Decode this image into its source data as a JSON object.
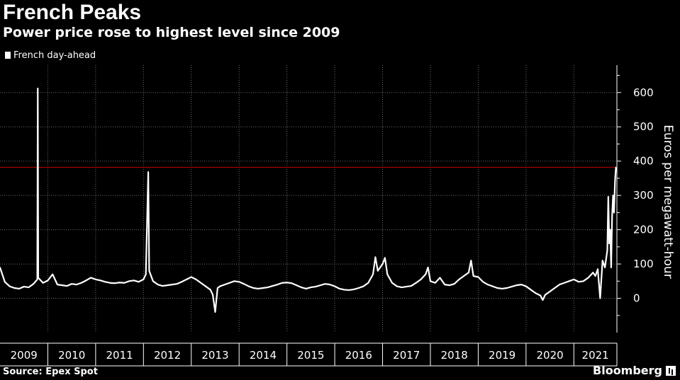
{
  "title": "French Peaks",
  "subtitle": "Power price rose to highest level since 2009",
  "source": "Source: Epex Spot",
  "brand": "Bloomberg",
  "colors": {
    "background": "#000000",
    "series": "#ffffff",
    "reference_line": "#c00000",
    "grid": "#6a6a6a"
  },
  "chart_data": {
    "type": "line",
    "title": "French Peaks",
    "subtitle": "Power price rose to highest level since 2009",
    "ylabel": "Euros per megawatt-hour",
    "y_axis_side": "right",
    "xlim": [
      2009.0,
      2021.9
    ],
    "ylim": [
      -100,
      680
    ],
    "yticks": [
      0,
      100,
      200,
      300,
      400,
      500,
      600
    ],
    "grid": true,
    "legend": "top-left",
    "categories": [
      "2009",
      "2010",
      "2011",
      "2012",
      "2013",
      "2014",
      "2015",
      "2016",
      "2017",
      "2018",
      "2019",
      "2020",
      "2021"
    ],
    "reference_line": 382,
    "series": [
      {
        "name": "French day-ahead",
        "color": "#ffffff",
        "points": [
          [
            2009.0,
            90
          ],
          [
            2009.1,
            48
          ],
          [
            2009.2,
            35
          ],
          [
            2009.3,
            30
          ],
          [
            2009.4,
            28
          ],
          [
            2009.5,
            34
          ],
          [
            2009.6,
            32
          ],
          [
            2009.7,
            42
          ],
          [
            2009.78,
            55
          ],
          [
            2009.79,
            612
          ],
          [
            2009.8,
            60
          ],
          [
            2009.9,
            45
          ],
          [
            2010.0,
            52
          ],
          [
            2010.1,
            70
          ],
          [
            2010.2,
            40
          ],
          [
            2010.3,
            38
          ],
          [
            2010.4,
            36
          ],
          [
            2010.5,
            42
          ],
          [
            2010.6,
            40
          ],
          [
            2010.7,
            45
          ],
          [
            2010.8,
            52
          ],
          [
            2010.9,
            60
          ],
          [
            2011.0,
            55
          ],
          [
            2011.1,
            52
          ],
          [
            2011.2,
            48
          ],
          [
            2011.3,
            45
          ],
          [
            2011.4,
            44
          ],
          [
            2011.5,
            46
          ],
          [
            2011.6,
            45
          ],
          [
            2011.7,
            50
          ],
          [
            2011.8,
            52
          ],
          [
            2011.9,
            48
          ],
          [
            2012.0,
            55
          ],
          [
            2012.05,
            70
          ],
          [
            2012.1,
            368
          ],
          [
            2012.12,
            80
          ],
          [
            2012.2,
            50
          ],
          [
            2012.3,
            40
          ],
          [
            2012.4,
            36
          ],
          [
            2012.5,
            38
          ],
          [
            2012.6,
            40
          ],
          [
            2012.7,
            42
          ],
          [
            2012.8,
            48
          ],
          [
            2012.9,
            55
          ],
          [
            2013.0,
            62
          ],
          [
            2013.1,
            55
          ],
          [
            2013.2,
            45
          ],
          [
            2013.3,
            35
          ],
          [
            2013.4,
            25
          ],
          [
            2013.45,
            10
          ],
          [
            2013.5,
            -40
          ],
          [
            2013.55,
            30
          ],
          [
            2013.6,
            35
          ],
          [
            2013.7,
            40
          ],
          [
            2013.8,
            45
          ],
          [
            2013.9,
            50
          ],
          [
            2014.0,
            48
          ],
          [
            2014.1,
            42
          ],
          [
            2014.2,
            35
          ],
          [
            2014.3,
            30
          ],
          [
            2014.4,
            28
          ],
          [
            2014.5,
            30
          ],
          [
            2014.6,
            32
          ],
          [
            2014.7,
            36
          ],
          [
            2014.8,
            40
          ],
          [
            2014.9,
            45
          ],
          [
            2015.0,
            46
          ],
          [
            2015.1,
            44
          ],
          [
            2015.2,
            38
          ],
          [
            2015.3,
            32
          ],
          [
            2015.4,
            28
          ],
          [
            2015.5,
            32
          ],
          [
            2015.6,
            34
          ],
          [
            2015.7,
            38
          ],
          [
            2015.8,
            42
          ],
          [
            2015.9,
            40
          ],
          [
            2016.0,
            35
          ],
          [
            2016.1,
            28
          ],
          [
            2016.2,
            25
          ],
          [
            2016.3,
            24
          ],
          [
            2016.4,
            26
          ],
          [
            2016.5,
            30
          ],
          [
            2016.6,
            35
          ],
          [
            2016.7,
            45
          ],
          [
            2016.8,
            70
          ],
          [
            2016.85,
            120
          ],
          [
            2016.9,
            80
          ],
          [
            2016.95,
            90
          ],
          [
            2017.0,
            100
          ],
          [
            2017.05,
            118
          ],
          [
            2017.1,
            70
          ],
          [
            2017.2,
            45
          ],
          [
            2017.3,
            35
          ],
          [
            2017.4,
            32
          ],
          [
            2017.5,
            34
          ],
          [
            2017.6,
            36
          ],
          [
            2017.7,
            45
          ],
          [
            2017.8,
            55
          ],
          [
            2017.9,
            70
          ],
          [
            2017.95,
            90
          ],
          [
            2018.0,
            50
          ],
          [
            2018.1,
            45
          ],
          [
            2018.2,
            60
          ],
          [
            2018.3,
            40
          ],
          [
            2018.4,
            38
          ],
          [
            2018.5,
            42
          ],
          [
            2018.6,
            55
          ],
          [
            2018.7,
            65
          ],
          [
            2018.8,
            75
          ],
          [
            2018.85,
            110
          ],
          [
            2018.9,
            65
          ],
          [
            2019.0,
            62
          ],
          [
            2019.1,
            48
          ],
          [
            2019.2,
            40
          ],
          [
            2019.3,
            35
          ],
          [
            2019.4,
            30
          ],
          [
            2019.5,
            28
          ],
          [
            2019.6,
            30
          ],
          [
            2019.7,
            34
          ],
          [
            2019.8,
            38
          ],
          [
            2019.9,
            40
          ],
          [
            2020.0,
            35
          ],
          [
            2020.1,
            25
          ],
          [
            2020.2,
            15
          ],
          [
            2020.3,
            8
          ],
          [
            2020.35,
            -5
          ],
          [
            2020.4,
            10
          ],
          [
            2020.5,
            20
          ],
          [
            2020.6,
            30
          ],
          [
            2020.7,
            40
          ],
          [
            2020.8,
            45
          ],
          [
            2020.9,
            50
          ],
          [
            2021.0,
            55
          ],
          [
            2021.1,
            48
          ],
          [
            2021.2,
            50
          ],
          [
            2021.3,
            60
          ],
          [
            2021.4,
            75
          ],
          [
            2021.45,
            65
          ],
          [
            2021.5,
            85
          ],
          [
            2021.55,
            0
          ],
          [
            2021.6,
            110
          ],
          [
            2021.65,
            90
          ],
          [
            2021.7,
            140
          ],
          [
            2021.72,
            296
          ],
          [
            2021.74,
            160
          ],
          [
            2021.76,
            200
          ],
          [
            2021.78,
            90
          ],
          [
            2021.8,
            240
          ],
          [
            2021.82,
            300
          ],
          [
            2021.84,
            250
          ],
          [
            2021.86,
            340
          ],
          [
            2021.88,
            382
          ]
        ]
      }
    ]
  }
}
